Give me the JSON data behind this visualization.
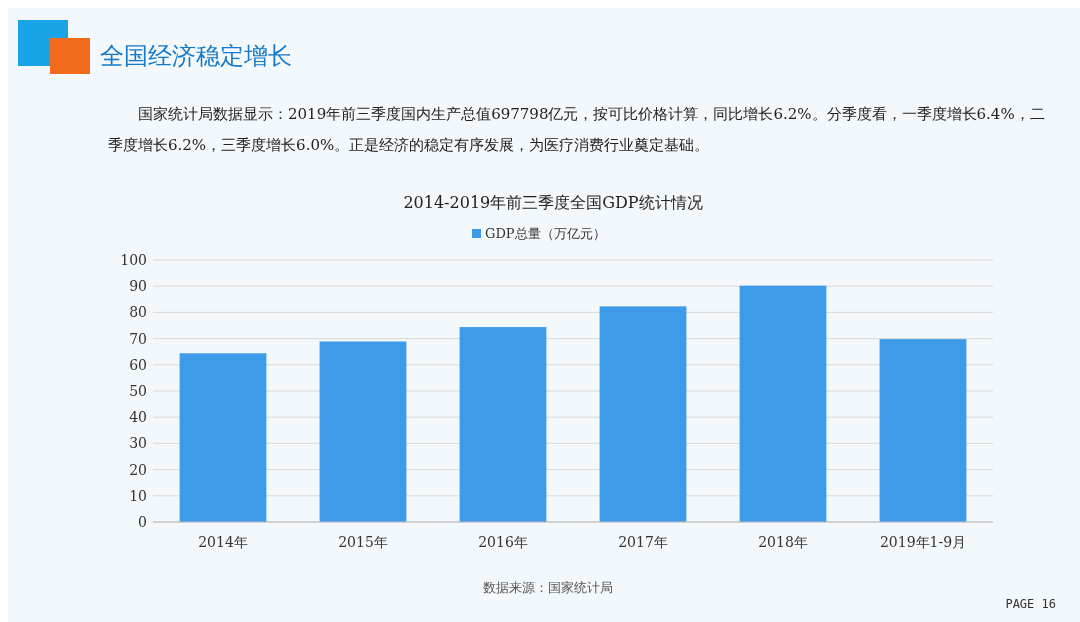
{
  "chart_data": {
    "type": "bar",
    "title": "2014-2019年前三季度全国GDP统计情况",
    "annotations": [
      "全国经济稳定增长",
      "国家统计局数据显示：2019年前三季度国内生产总值697798亿元，按可比价格计算，同比增长6.2%。分季度看，一季度增长6.4%，二季度增长6.2%，三季度增长6.0%。正是经济的稳定有序发展，为医疗消费行业奠定基础。",
      "数据来源：国家统计局",
      "PAGE 16"
    ],
    "categories": [
      "2014年",
      "2015年",
      "2016年",
      "2017年",
      "2018年",
      "2019年1-9月"
    ],
    "series": [
      {
        "name": "GDP总量（万亿元）",
        "color": "#3d9be9",
        "values": [
          64.4,
          68.9,
          74.4,
          82.3,
          90.2,
          69.8
        ]
      }
    ],
    "ylim": [
      0,
      100
    ],
    "yticks": [
      0,
      10,
      20,
      30,
      40,
      50,
      60,
      70,
      80,
      90,
      100
    ],
    "grid": "y",
    "legend": "top"
  }
}
